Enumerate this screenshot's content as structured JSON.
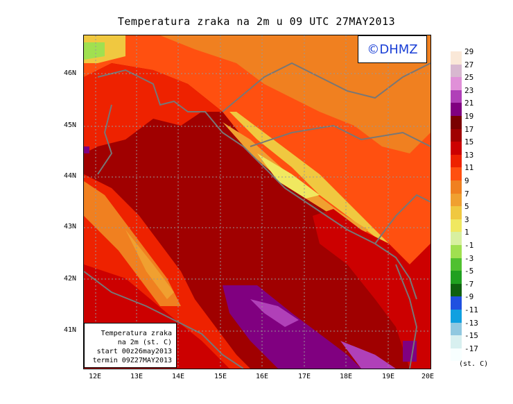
{
  "title": "Temperatura zraka na 2m u 09 UTC 27MAY2013",
  "copyright": "©DHMZ",
  "infobox": {
    "line1": "Temperatura zraka",
    "line2": "na 2m (st. C)",
    "line3": "start 00z26may2013",
    "line4": "termin 09Z27MAY2013"
  },
  "lat_labels": [
    "46N",
    "45N",
    "44N",
    "43N",
    "42N",
    "41N"
  ],
  "lon_labels": [
    "12E",
    "13E",
    "14E",
    "15E",
    "16E",
    "17E",
    "18E",
    "19E",
    "20E"
  ],
  "legend": {
    "unit": "(st. C)",
    "labels": [
      "29",
      "27",
      "25",
      "23",
      "21",
      "19",
      "17",
      "15",
      "13",
      "11",
      "9",
      "7",
      "5",
      "3",
      "1",
      "-1",
      "-3",
      "-5",
      "-7",
      "-9",
      "-11",
      "-13",
      "-15",
      "-17"
    ],
    "colors": [
      "#fae8d8",
      "#d8b8d0",
      "#e090d8",
      "#b040b8",
      "#800080",
      "#7a0000",
      "#a00000",
      "#cc0000",
      "#ee2200",
      "#ff5010",
      "#f08020",
      "#f0a030",
      "#f0c840",
      "#f0e860",
      "#d8f0a0",
      "#a0e050",
      "#50c030",
      "#20a020",
      "#106010",
      "#2050e0",
      "#10a0e0",
      "#90c8e0",
      "#d8f0f0",
      "#f8ffff"
    ]
  }
}
